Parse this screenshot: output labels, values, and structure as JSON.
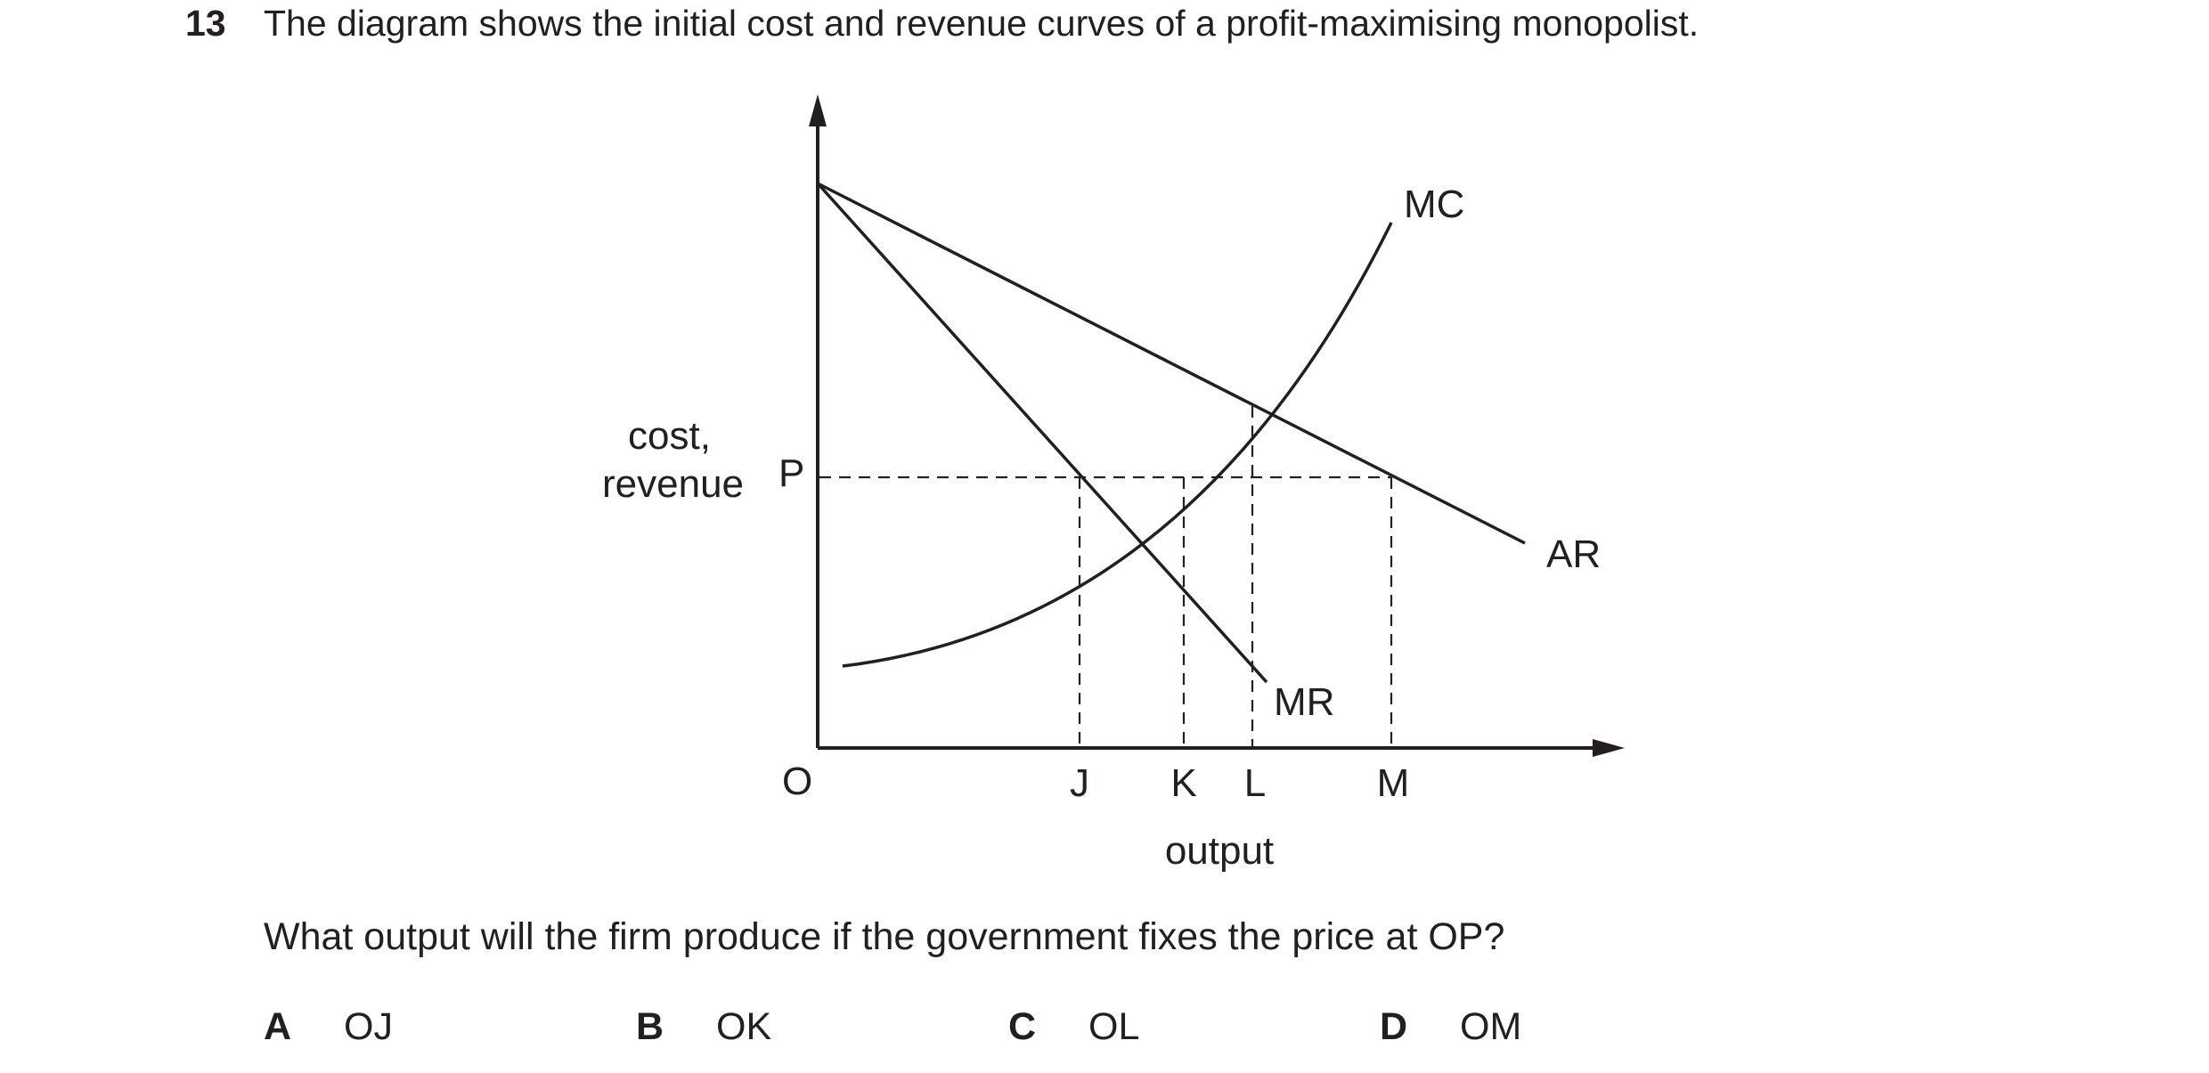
{
  "question": {
    "number": "13",
    "stem": "The diagram shows the initial cost and revenue curves of a profit-maximising monopolist.",
    "prompt": "What output will the firm produce if the government fixes the price at OP?"
  },
  "diagram": {
    "y_axis_label_line1": "cost,",
    "y_axis_label_line2": "revenue",
    "x_axis_label": "output",
    "origin_label": "O",
    "price_label": "P",
    "curves": {
      "mc": "MC",
      "ar": "AR",
      "mr": "MR"
    },
    "output_points": {
      "j": "J",
      "k": "K",
      "l": "L",
      "m": "M"
    }
  },
  "options": [
    {
      "letter": "A",
      "text": "OJ"
    },
    {
      "letter": "B",
      "text": "OK"
    },
    {
      "letter": "C",
      "text": "OL"
    },
    {
      "letter": "D",
      "text": "OM"
    }
  ]
}
